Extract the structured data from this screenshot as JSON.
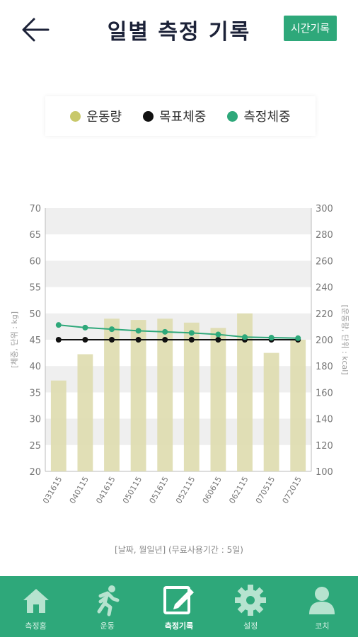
{
  "header": {
    "title": "일별 측정 기록",
    "time_button": "시간기록"
  },
  "legend": [
    {
      "label": "운동량",
      "color": "#c8c86a"
    },
    {
      "label": "목표체중",
      "color": "#111111"
    },
    {
      "label": "측정체중",
      "color": "#2ea87a"
    }
  ],
  "chart_data": {
    "type": "bar",
    "categories": [
      "031615",
      "040115",
      "041615",
      "050115",
      "051615",
      "052115",
      "060615",
      "062115",
      "070515",
      "072015"
    ],
    "series": [
      {
        "name": "운동량",
        "type": "bar",
        "axis": "right",
        "values": [
          169,
          189,
          216,
          215,
          216,
          213,
          209,
          220,
          190,
          200
        ]
      },
      {
        "name": "목표체중",
        "type": "line",
        "axis": "left",
        "values": [
          45,
          45,
          45,
          45,
          45,
          45,
          45,
          45,
          45,
          45
        ]
      },
      {
        "name": "측정체중",
        "type": "line",
        "axis": "left",
        "values": [
          47.8,
          47.3,
          47.0,
          46.7,
          46.5,
          46.3,
          46.0,
          45.5,
          45.4,
          45.3
        ]
      }
    ],
    "ylabel_left": "[체중, 단위 : kg]",
    "ylabel_right": "[운동량, 단위 : kcal]",
    "ylim_left": [
      20,
      70
    ],
    "ylim_right": [
      100,
      300
    ],
    "yticks_left": [
      "20",
      "25",
      "30",
      "35",
      "40",
      "45",
      "50",
      "55",
      "60",
      "65",
      "70"
    ],
    "yticks_right": [
      "100",
      "120",
      "140",
      "160",
      "180",
      "200",
      "220",
      "240",
      "260",
      "280",
      "300"
    ],
    "grid": "alternating bands"
  },
  "caption": "[날짜, 월일년] (무료사용기간 : 5일)",
  "tabs": [
    {
      "label": "측정홈",
      "icon": "home-icon",
      "active": false
    },
    {
      "label": "운동",
      "icon": "runner-icon",
      "active": false
    },
    {
      "label": "측정기록",
      "icon": "edit-note-icon",
      "active": true
    },
    {
      "label": "설정",
      "icon": "gear-icon",
      "active": false
    },
    {
      "label": "코치",
      "icon": "person-icon",
      "active": false
    }
  ]
}
